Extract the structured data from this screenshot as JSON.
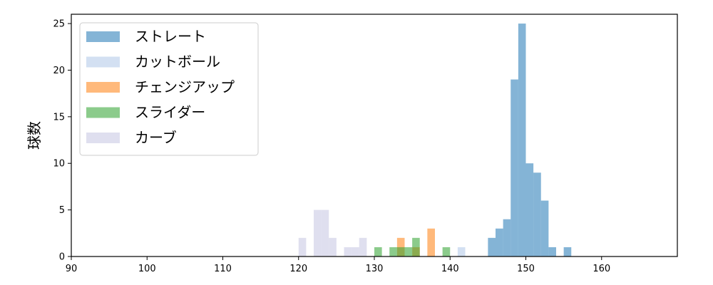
{
  "chart_data": {
    "type": "histogram",
    "xlabel": "",
    "ylabel": "球数",
    "xlim": [
      90,
      170
    ],
    "ylim": [
      0,
      26
    ],
    "xticks": [
      90,
      100,
      110,
      120,
      130,
      140,
      150,
      160
    ],
    "yticks": [
      0,
      5,
      10,
      15,
      20,
      25
    ],
    "grid": false,
    "legend_position": "upper-left",
    "series": [
      {
        "name": "ストレート",
        "color": "#1f77b4",
        "bin_width": 1,
        "bins": [
          {
            "x": 145,
            "count": 2
          },
          {
            "x": 146,
            "count": 3
          },
          {
            "x": 147,
            "count": 4
          },
          {
            "x": 148,
            "count": 19
          },
          {
            "x": 149,
            "count": 25
          },
          {
            "x": 150,
            "count": 10
          },
          {
            "x": 151,
            "count": 9
          },
          {
            "x": 152,
            "count": 6
          },
          {
            "x": 153,
            "count": 1
          },
          {
            "x": 155,
            "count": 1
          }
        ]
      },
      {
        "name": "カットボール",
        "color": "#aec7e8",
        "bin_width": 1,
        "bins": [
          {
            "x": 141,
            "count": 1
          }
        ]
      },
      {
        "name": "チェンジアップ",
        "color": "#ff7f0e",
        "bin_width": 1,
        "bins": [
          {
            "x": 133,
            "count": 2
          },
          {
            "x": 135,
            "count": 1
          },
          {
            "x": 137,
            "count": 3
          }
        ]
      },
      {
        "name": "スライダー",
        "color": "#2ca02c",
        "bin_width": 1,
        "bins": [
          {
            "x": 130,
            "count": 1
          },
          {
            "x": 132,
            "count": 1
          },
          {
            "x": 133,
            "count": 1
          },
          {
            "x": 134,
            "count": 1
          },
          {
            "x": 135,
            "count": 2
          },
          {
            "x": 139,
            "count": 1
          }
        ]
      },
      {
        "name": "カーブ",
        "color": "#c5c5e2",
        "bin_width": 1,
        "bins": [
          {
            "x": 120,
            "count": 2
          },
          {
            "x": 122,
            "count": 5
          },
          {
            "x": 123,
            "count": 5
          },
          {
            "x": 124,
            "count": 2
          },
          {
            "x": 126,
            "count": 1
          },
          {
            "x": 127,
            "count": 1
          },
          {
            "x": 128,
            "count": 2
          }
        ]
      }
    ]
  }
}
